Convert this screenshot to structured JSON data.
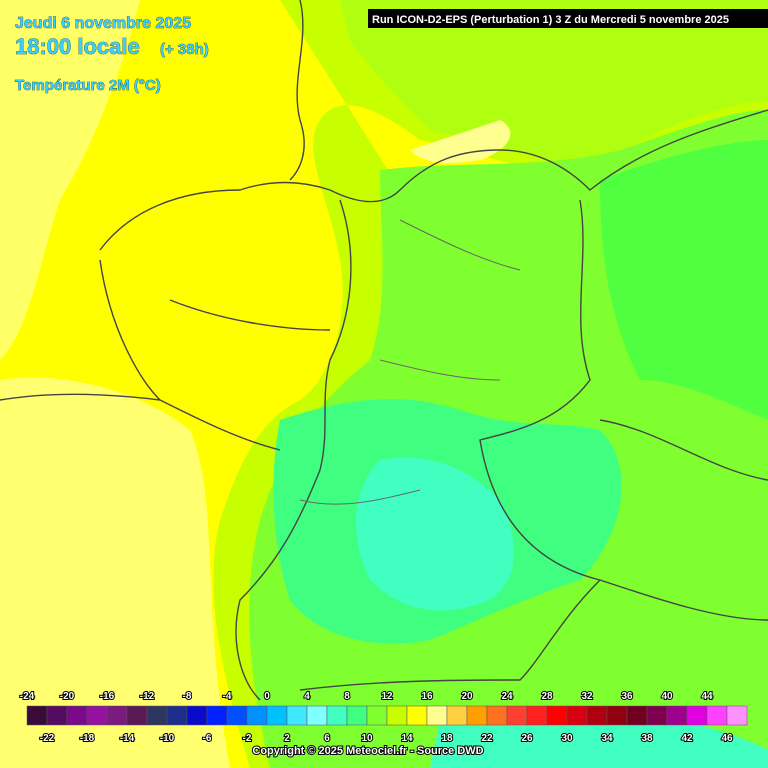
{
  "header": {
    "date": "Jeudi 6 novembre 2025",
    "time": "18:00 locale",
    "lead": "(+ 38h)",
    "parameter": "Température 2M (°C)",
    "run": "Run ICON-D2-EPS (Perturbation 1) 3 Z du Mercredi 5 novembre 2025"
  },
  "legend": {
    "steps": [
      {
        "value": -24,
        "color": "#3a0a3a"
      },
      {
        "value": -22,
        "color": "#550c5e"
      },
      {
        "value": -20,
        "color": "#7a0a8a"
      },
      {
        "value": -18,
        "color": "#95119f"
      },
      {
        "value": -16,
        "color": "#7d1a7f"
      },
      {
        "value": -14,
        "color": "#5a1a55"
      },
      {
        "value": -12,
        "color": "#2e3560"
      },
      {
        "value": -10,
        "color": "#1e2e8c"
      },
      {
        "value": -8,
        "color": "#0a0acc"
      },
      {
        "value": -6,
        "color": "#0020ff"
      },
      {
        "value": -4,
        "color": "#0050ff"
      },
      {
        "value": -2,
        "color": "#0090ff"
      },
      {
        "value": 0,
        "color": "#00c0ff"
      },
      {
        "value": 2,
        "color": "#40e8ff"
      },
      {
        "value": 4,
        "color": "#80ffff"
      },
      {
        "value": 6,
        "color": "#40ffc0"
      },
      {
        "value": 8,
        "color": "#40ff80"
      },
      {
        "value": 10,
        "color": "#80ff30"
      },
      {
        "value": 12,
        "color": "#c8ff00"
      },
      {
        "value": 14,
        "color": "#ffff00"
      },
      {
        "value": 16,
        "color": "#ffff90"
      },
      {
        "value": 18,
        "color": "#ffd040"
      },
      {
        "value": 20,
        "color": "#ffa000"
      },
      {
        "value": 22,
        "color": "#ff7020"
      },
      {
        "value": 24,
        "color": "#ff4030"
      },
      {
        "value": 26,
        "color": "#ff2020"
      },
      {
        "value": 28,
        "color": "#ff0000"
      },
      {
        "value": 30,
        "color": "#d80010"
      },
      {
        "value": 32,
        "color": "#b00010"
      },
      {
        "value": 34,
        "color": "#900010"
      },
      {
        "value": 36,
        "color": "#700020"
      },
      {
        "value": 38,
        "color": "#800050"
      },
      {
        "value": 40,
        "color": "#a00090"
      },
      {
        "value": 42,
        "color": "#e000e0"
      },
      {
        "value": 44,
        "color": "#ff40ff"
      },
      {
        "value": 46,
        "color": "#ff90ff"
      }
    ]
  },
  "footer": {
    "copyright": "Copyright © 2025 Meteociel.fr - Source DWD"
  }
}
